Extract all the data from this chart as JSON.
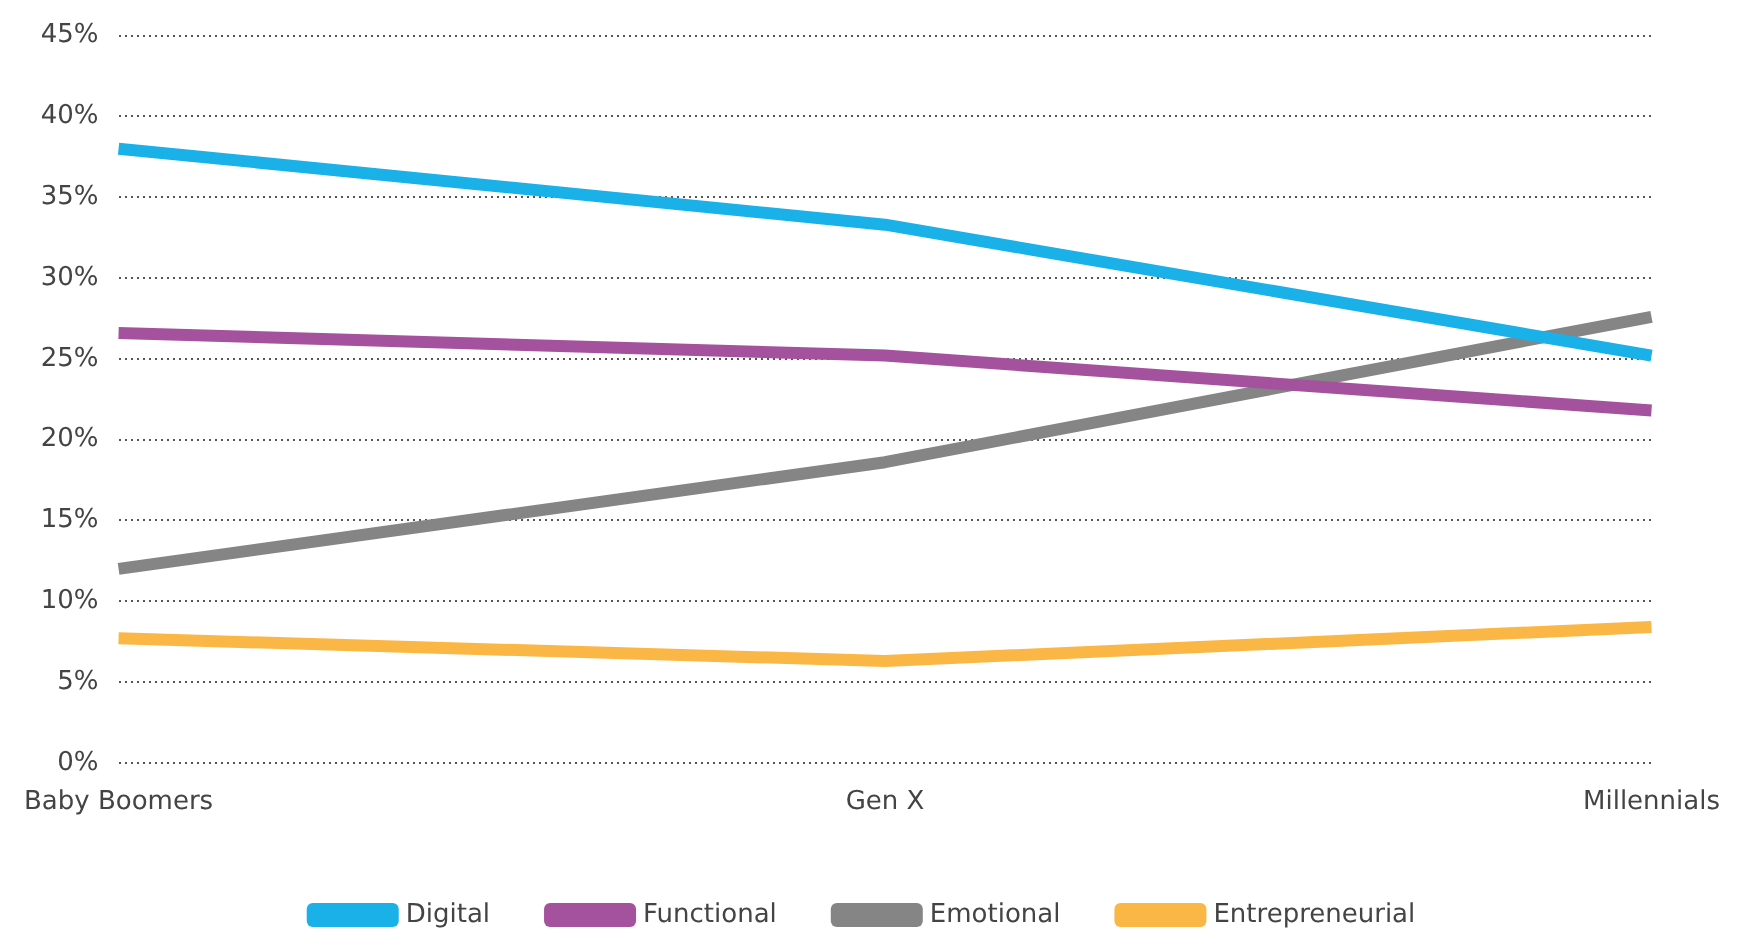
{
  "chart_data": {
    "type": "line",
    "categories": [
      "Baby Boomers",
      "Gen X",
      "Millennials"
    ],
    "series": [
      {
        "name": "Digital",
        "color": "#1ab0e8",
        "values": [
          38,
          33.3,
          25.2
        ]
      },
      {
        "name": "Functional",
        "color": "#a4519e",
        "values": [
          26.6,
          25.2,
          21.8
        ]
      },
      {
        "name": "Emotional",
        "color": "#858585",
        "values": [
          12,
          18.6,
          27.6
        ]
      },
      {
        "name": "Entrepreneurial",
        "color": "#fbb745",
        "values": [
          7.7,
          6.3,
          8.4
        ]
      }
    ],
    "ylim": [
      0,
      45
    ],
    "yticks": [
      {
        "value": 0,
        "label": "0%"
      },
      {
        "value": 5,
        "label": "5%"
      },
      {
        "value": 10,
        "label": "10%"
      },
      {
        "value": 15,
        "label": "15%"
      },
      {
        "value": 20,
        "label": "20%"
      },
      {
        "value": 25,
        "label": "25%"
      },
      {
        "value": 30,
        "label": "30%"
      },
      {
        "value": 35,
        "label": "35%"
      },
      {
        "value": 40,
        "label": "40%"
      },
      {
        "value": 45,
        "label": "45%"
      }
    ],
    "grid": "y",
    "legend": "bottom",
    "marker": "none",
    "line_style": "solid"
  }
}
